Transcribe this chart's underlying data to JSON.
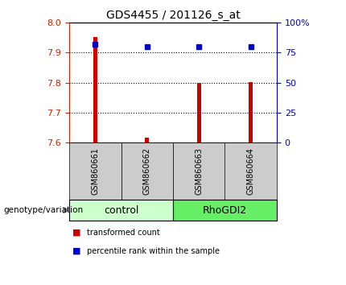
{
  "title": "GDS4455 / 201126_s_at",
  "samples": [
    "GSM860661",
    "GSM860662",
    "GSM860663",
    "GSM860664"
  ],
  "bar_bottoms": [
    7.6,
    7.6,
    7.6,
    7.6
  ],
  "bar_tops": [
    7.953,
    7.615,
    7.8,
    7.803
  ],
  "percentile_values": [
    7.928,
    7.921,
    7.921,
    7.921
  ],
  "ylim_left": [
    7.6,
    8.0
  ],
  "ylim_right": [
    0,
    100
  ],
  "yticks_left": [
    7.6,
    7.7,
    7.8,
    7.9,
    8.0
  ],
  "yticks_right": [
    0,
    25,
    50,
    75,
    100
  ],
  "ytick_labels_right": [
    "0",
    "25",
    "50",
    "75",
    "100%"
  ],
  "groups": [
    {
      "label": "control",
      "samples": [
        0,
        1
      ],
      "color": "#ccffcc"
    },
    {
      "label": "RhoGDI2",
      "samples": [
        2,
        3
      ],
      "color": "#66ee66"
    }
  ],
  "bar_color": "#cc0000",
  "blue_color": "#0000cc",
  "left_tick_color": "#cc2200",
  "right_tick_color": "#0000cc",
  "background_color": "#ffffff",
  "plot_bg_color": "#ffffff",
  "legend_red_label": "transformed count",
  "legend_blue_label": "percentile rank within the sample",
  "genotype_label": "genotype/variation",
  "sample_label_bg": "#cccccc",
  "bar_width": 0.07
}
